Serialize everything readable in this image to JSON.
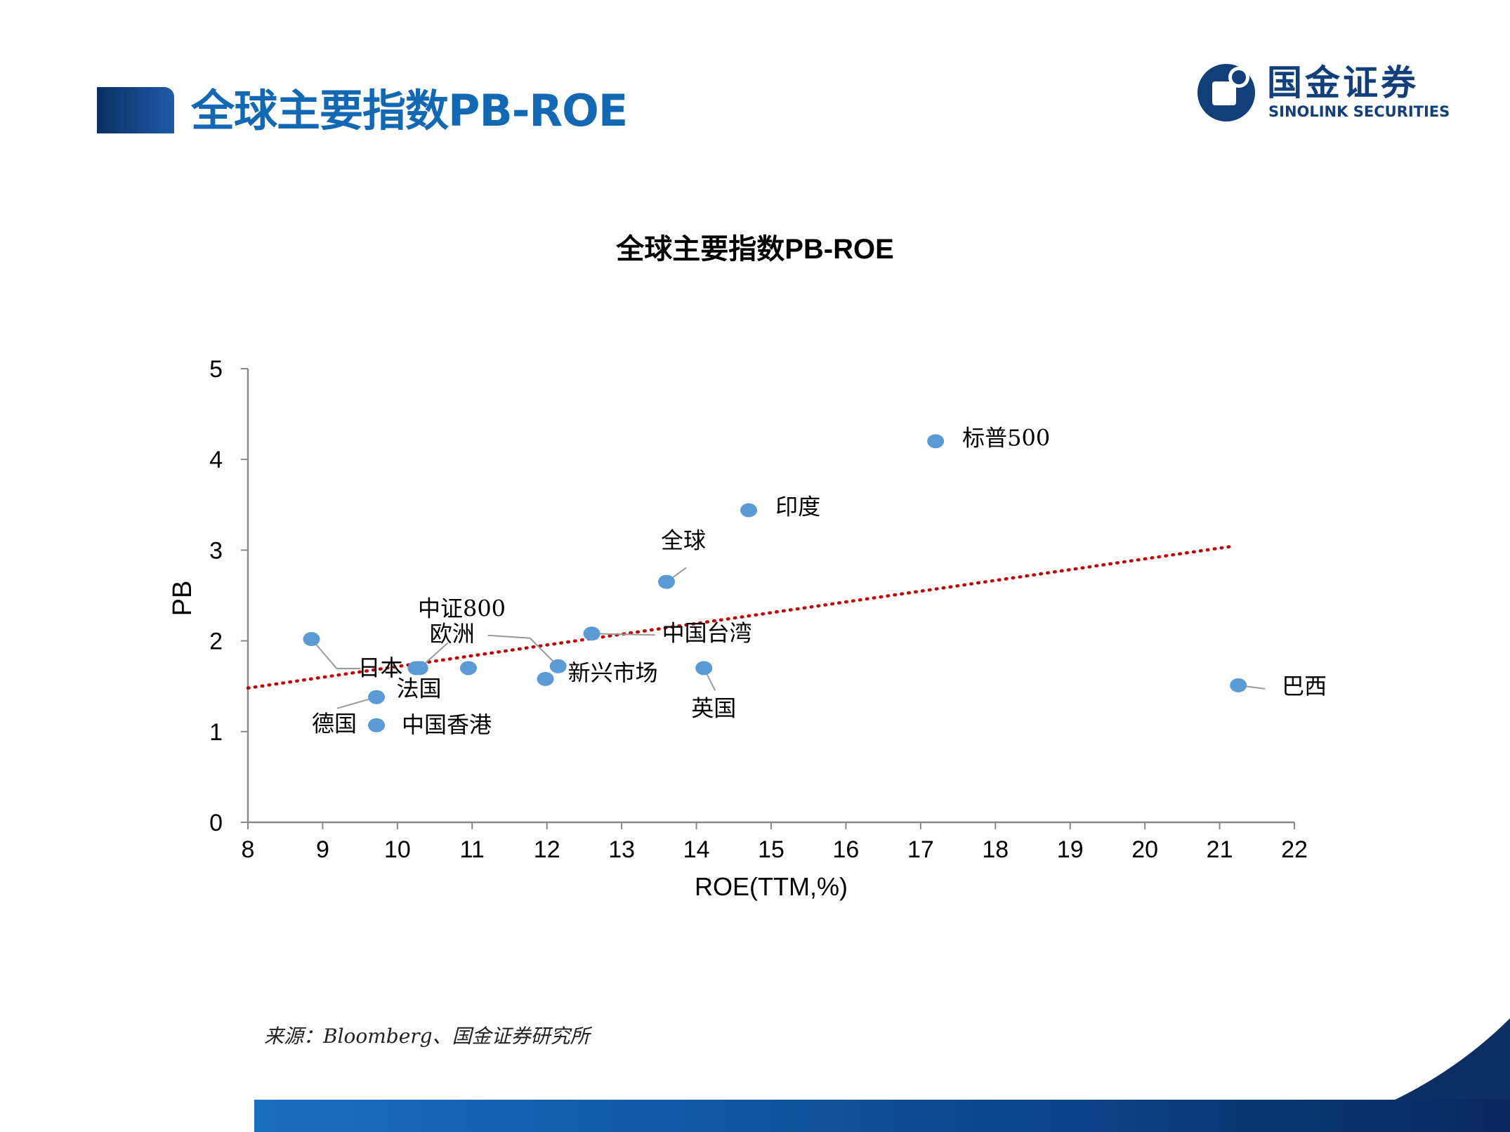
{
  "header": {
    "title": "全球主要指数PB-ROE",
    "logo_cn": "国金证券",
    "logo_en": "SINOLINK SECURITIES"
  },
  "colors": {
    "title": "#1268b3",
    "point": "#5b9bd5",
    "trendline": "#c00000",
    "brand_dark": "#123e7a"
  },
  "chart_data": {
    "type": "scatter",
    "title": "全球主要指数PB-ROE",
    "xlabel": "ROE(TTM,%)",
    "ylabel": "PB",
    "xlim": [
      8,
      22
    ],
    "ylim": [
      0,
      5
    ],
    "x_ticks": [
      "8",
      "9",
      "10",
      "11",
      "12",
      "13",
      "14",
      "15",
      "16",
      "17",
      "18",
      "19",
      "20",
      "21",
      "22"
    ],
    "y_ticks": [
      "0",
      "1",
      "2",
      "3",
      "4",
      "5"
    ],
    "grid": false,
    "legend": "none",
    "points": [
      {
        "label": "标普500",
        "x": 17.2,
        "y": 4.2
      },
      {
        "label": "印度",
        "x": 14.7,
        "y": 3.44
      },
      {
        "label": "全球",
        "x": 13.6,
        "y": 2.65
      },
      {
        "label": "中国台湾",
        "x": 12.6,
        "y": 2.08
      },
      {
        "label": "英国",
        "x": 14.1,
        "y": 1.7
      },
      {
        "label": "新兴市场",
        "x": 12.15,
        "y": 1.72
      },
      {
        "label": "欧洲",
        "x": 10.3,
        "y": 1.7
      },
      {
        "label": "中证800",
        "x": 10.95,
        "y": 1.7
      },
      {
        "label": "",
        "x": 11.98,
        "y": 1.58
      },
      {
        "label": "日本",
        "x": 8.85,
        "y": 2.02
      },
      {
        "label": "法国",
        "x": 10.25,
        "y": 1.7
      },
      {
        "label": "德国",
        "x": 9.72,
        "y": 1.38
      },
      {
        "label": "中国香港",
        "x": 9.72,
        "y": 1.07
      },
      {
        "label": "巴西",
        "x": 21.25,
        "y": 1.51
      }
    ],
    "trendline": {
      "style": "dotted",
      "x": [
        8,
        21.15
      ],
      "y": [
        1.48,
        3.04
      ]
    }
  },
  "footer": {
    "source": "来源：Bloomberg、国金证券研究所"
  }
}
